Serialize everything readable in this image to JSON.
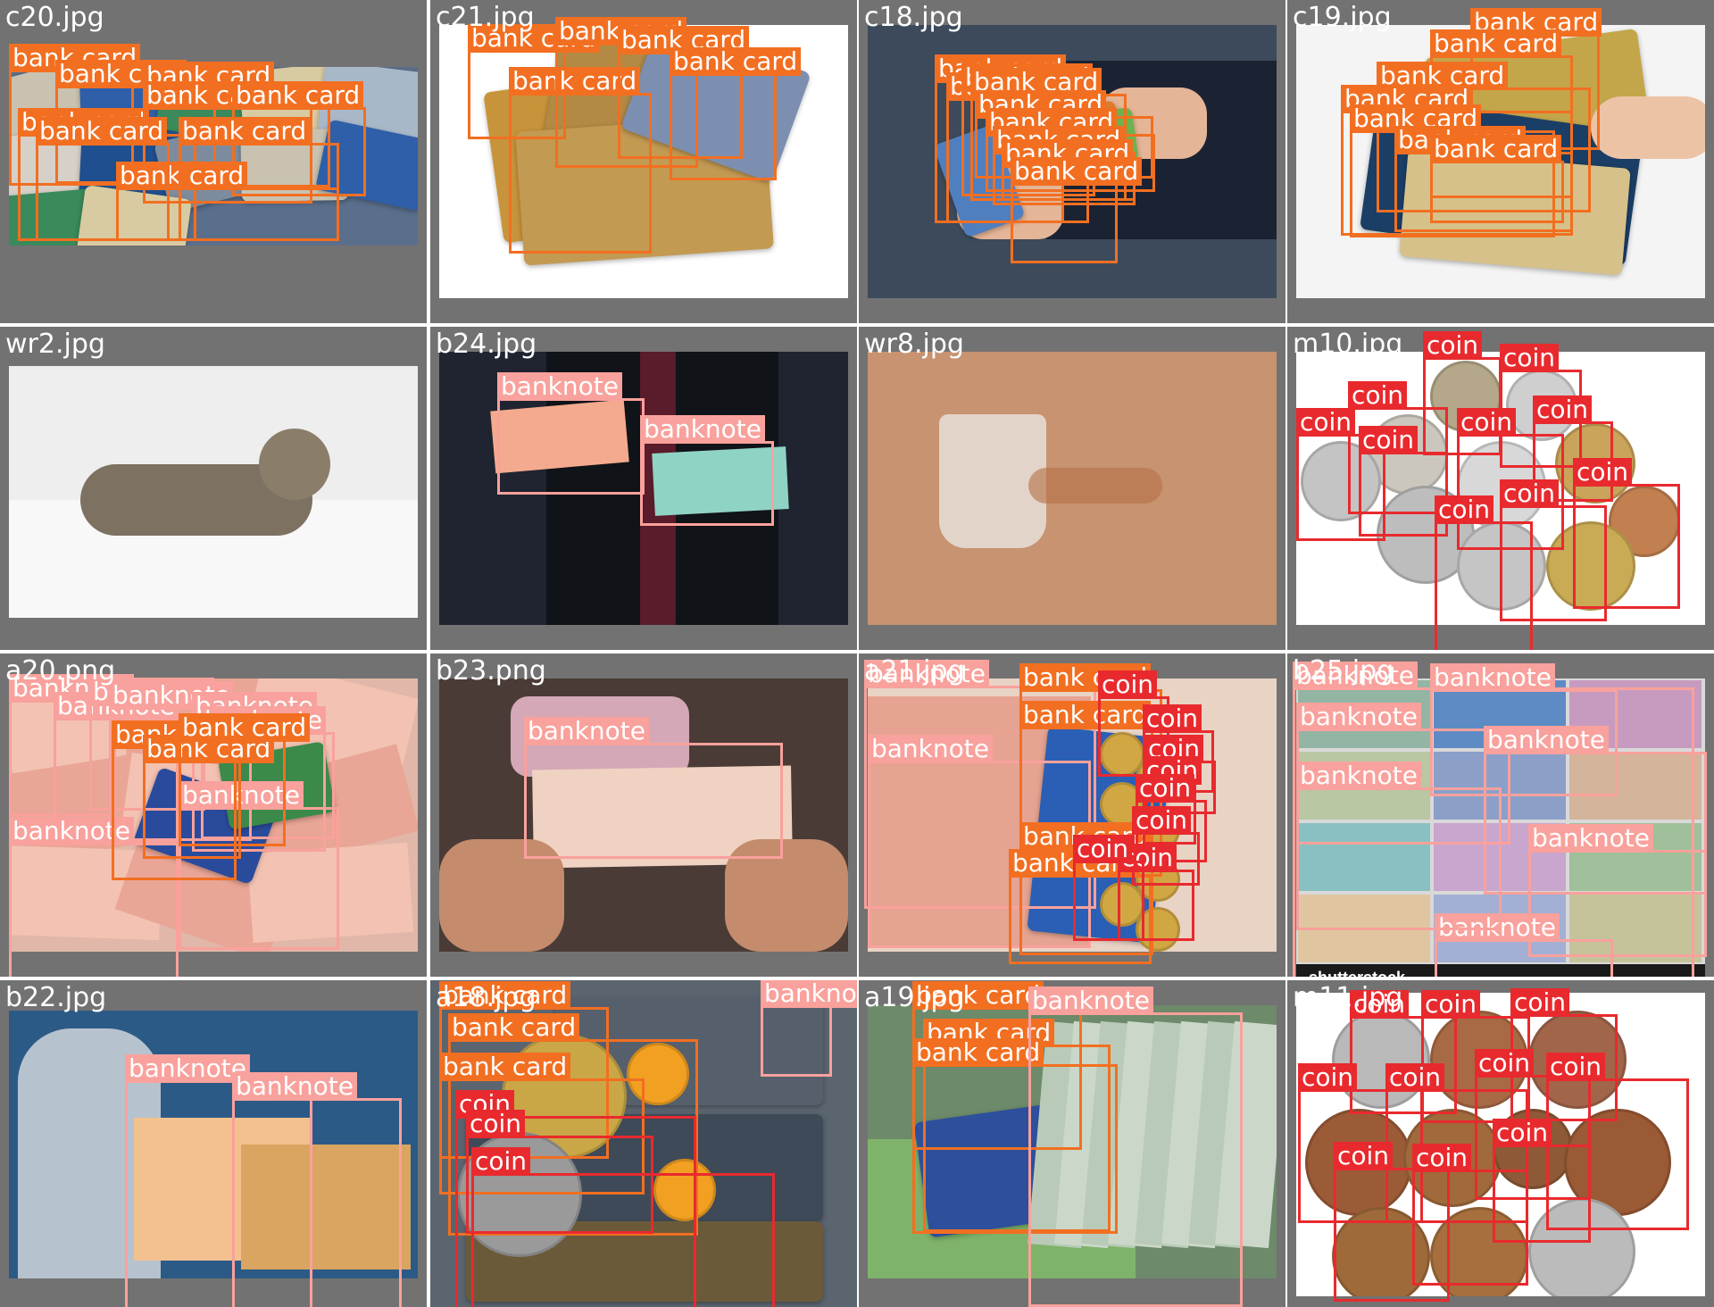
{
  "colors": {
    "grid_bg": "#727272",
    "bank_card": "#f26f21",
    "banknote": "#f9a19c",
    "coin": "#e82a2e"
  },
  "tiles": [
    {
      "name": "c20.jpg",
      "scene": "bank-cards",
      "bg": "#5a6f8c",
      "boxes": [
        {
          "label": "bank card",
          "cls": "bank_card"
        },
        {
          "label": "bank card",
          "cls": "bank_card"
        },
        {
          "label": "bank card",
          "cls": "bank_card"
        },
        {
          "label": "bank card",
          "cls": "bank_card"
        },
        {
          "label": "bank card",
          "cls": "bank_card"
        },
        {
          "label": "bank card",
          "cls": "bank_card"
        },
        {
          "label": "bank card",
          "cls": "bank_card"
        },
        {
          "label": "bank card",
          "cls": "bank_card"
        },
        {
          "label": "bank card",
          "cls": "bank_card"
        }
      ]
    },
    {
      "name": "c21.jpg",
      "scene": "credit-cards-fan",
      "bg": "#ffffff",
      "boxes": [
        {
          "label": "bank card",
          "cls": "bank_card"
        },
        {
          "label": "bank card",
          "cls": "bank_card"
        },
        {
          "label": "bank card",
          "cls": "bank_card"
        },
        {
          "label": "bank card",
          "cls": "bank_card"
        },
        {
          "label": "bank card",
          "cls": "bank_card"
        }
      ]
    },
    {
      "name": "c18.jpg",
      "scene": "hands-cards",
      "bg": "#3c4a5c",
      "boxes": [
        {
          "label": "bank card",
          "cls": "bank_card"
        },
        {
          "label": "bank card",
          "cls": "bank_card"
        },
        {
          "label": "bank card",
          "cls": "bank_card"
        },
        {
          "label": "bank card",
          "cls": "bank_card"
        },
        {
          "label": "bank card",
          "cls": "bank_card"
        },
        {
          "label": "bank card",
          "cls": "bank_card"
        },
        {
          "label": "bank card",
          "cls": "bank_card"
        },
        {
          "label": "bank card",
          "cls": "bank_card"
        },
        {
          "label": "bank card",
          "cls": "bank_card"
        }
      ]
    },
    {
      "name": "c19.jpg",
      "scene": "wallet-cards",
      "bg": "#f4f4f4",
      "boxes": [
        {
          "label": "bank card",
          "cls": "bank_card"
        },
        {
          "label": "bank card",
          "cls": "bank_card"
        },
        {
          "label": "bank card",
          "cls": "bank_card"
        },
        {
          "label": "bank card",
          "cls": "bank_card"
        },
        {
          "label": "bank card",
          "cls": "bank_card"
        },
        {
          "label": "bank card",
          "cls": "bank_card"
        },
        {
          "label": "bank card",
          "cls": "bank_card"
        }
      ]
    },
    {
      "name": "wr2.jpg",
      "scene": "cat",
      "bg": "#eeeeee",
      "boxes": []
    },
    {
      "name": "b24.jpg",
      "scene": "man-banknotes",
      "bg": "#1f2430",
      "boxes": [
        {
          "label": "banknote",
          "cls": "banknote"
        },
        {
          "label": "banknote",
          "cls": "banknote"
        }
      ]
    },
    {
      "name": "wr8.jpg",
      "scene": "glass-water",
      "bg": "#c79370",
      "boxes": []
    },
    {
      "name": "m10.jpg",
      "scene": "coins-white",
      "bg": "#ffffff",
      "boxes": [
        {
          "label": "coin",
          "cls": "coin"
        },
        {
          "label": "coin",
          "cls": "coin"
        },
        {
          "label": "coin",
          "cls": "coin"
        },
        {
          "label": "coin",
          "cls": "coin"
        },
        {
          "label": "coin",
          "cls": "coin"
        },
        {
          "label": "coin",
          "cls": "coin"
        },
        {
          "label": "coin",
          "cls": "coin"
        },
        {
          "label": "coin",
          "cls": "coin"
        },
        {
          "label": "coin",
          "cls": "coin"
        },
        {
          "label": "coin",
          "cls": "coin"
        }
      ]
    },
    {
      "name": "a20.png",
      "scene": "banknotes-cards",
      "bg": "#e0b7a8",
      "boxes": [
        {
          "label": "banknote",
          "cls": "banknote"
        },
        {
          "label": "banknote",
          "cls": "banknote"
        },
        {
          "label": "banknote",
          "cls": "banknote"
        },
        {
          "label": "banknote",
          "cls": "banknote"
        },
        {
          "label": "banknote",
          "cls": "banknote"
        },
        {
          "label": "banknote",
          "cls": "banknote"
        },
        {
          "label": "banknote",
          "cls": "banknote"
        },
        {
          "label": "banknote",
          "cls": "banknote"
        },
        {
          "label": "bank card",
          "cls": "bank_card"
        },
        {
          "label": "bank card",
          "cls": "bank_card"
        },
        {
          "label": "bank card",
          "cls": "bank_card"
        }
      ]
    },
    {
      "name": "b23.png",
      "scene": "phone-banknote",
      "bg": "#4a3b36",
      "boxes": [
        {
          "label": "banknote",
          "cls": "banknote"
        }
      ]
    },
    {
      "name": "a21.jpg",
      "scene": "banknote-card-coins",
      "bg": "#e9d3c5",
      "boxes": [
        {
          "label": "banknote",
          "cls": "banknote"
        },
        {
          "label": "banknote",
          "cls": "banknote"
        },
        {
          "label": "bank card",
          "cls": "bank_card"
        },
        {
          "label": "bank card",
          "cls": "bank_card"
        },
        {
          "label": "bank card",
          "cls": "bank_card"
        },
        {
          "label": "bank card",
          "cls": "bank_card"
        },
        {
          "label": "coin",
          "cls": "coin"
        },
        {
          "label": "coin",
          "cls": "coin"
        },
        {
          "label": "coin",
          "cls": "coin"
        },
        {
          "label": "coin",
          "cls": "coin"
        },
        {
          "label": "coin",
          "cls": "coin"
        },
        {
          "label": "coin",
          "cls": "coin"
        },
        {
          "label": "coin",
          "cls": "coin"
        },
        {
          "label": "coin",
          "cls": "coin"
        }
      ]
    },
    {
      "name": "b25.jpg",
      "scene": "banknote-collage",
      "bg": "#d9d9d9",
      "footer": "shutterstock",
      "boxes": [
        {
          "label": "banknote",
          "cls": "banknote"
        },
        {
          "label": "banknote",
          "cls": "banknote"
        },
        {
          "label": "banknote",
          "cls": "banknote"
        },
        {
          "label": "banknote",
          "cls": "banknote"
        },
        {
          "label": "banknote",
          "cls": "banknote"
        },
        {
          "label": "banknote",
          "cls": "banknote"
        },
        {
          "label": "banknote",
          "cls": "banknote"
        },
        {
          "label": "banknote",
          "cls": "banknote"
        },
        {
          "label": "banknote",
          "cls": "banknote"
        },
        {
          "label": "banknote",
          "cls": "banknote"
        },
        {
          "label": "banknote",
          "cls": "banknote"
        },
        {
          "label": "banknote",
          "cls": "banknote"
        }
      ]
    },
    {
      "name": "b22.jpg",
      "scene": "man-old-notes",
      "bg": "#2c5a86",
      "boxes": [
        {
          "label": "banknote",
          "cls": "banknote"
        },
        {
          "label": "banknote",
          "cls": "banknote"
        }
      ]
    },
    {
      "name": "a18.jpg",
      "scene": "mastercards-coins",
      "bg": "#5b6570",
      "boxes": [
        {
          "label": "bank card",
          "cls": "bank_card"
        },
        {
          "label": "bank card",
          "cls": "bank_card"
        },
        {
          "label": "bank card",
          "cls": "bank_card"
        },
        {
          "label": "coin",
          "cls": "coin"
        },
        {
          "label": "coin",
          "cls": "coin"
        },
        {
          "label": "coin",
          "cls": "coin"
        },
        {
          "label": "banknote",
          "cls": "banknote"
        }
      ]
    },
    {
      "name": "a19.jpg",
      "scene": "wallet-rubles",
      "bg": "#6d8a6a",
      "boxes": [
        {
          "label": "bank card",
          "cls": "bank_card"
        },
        {
          "label": "bank card",
          "cls": "bank_card"
        },
        {
          "label": "bank card",
          "cls": "bank_card"
        },
        {
          "label": "banknote",
          "cls": "banknote"
        }
      ]
    },
    {
      "name": "m11.jpg",
      "scene": "coins-grid",
      "bg": "#ffffff",
      "boxes": [
        {
          "label": "coin",
          "cls": "coin"
        },
        {
          "label": "coin",
          "cls": "coin"
        },
        {
          "label": "coin",
          "cls": "coin"
        },
        {
          "label": "coin",
          "cls": "coin"
        },
        {
          "label": "coin",
          "cls": "coin"
        },
        {
          "label": "coin",
          "cls": "coin"
        },
        {
          "label": "coin",
          "cls": "coin"
        },
        {
          "label": "coin",
          "cls": "coin"
        },
        {
          "label": "coin",
          "cls": "coin"
        },
        {
          "label": "coin",
          "cls": "coin"
        }
      ]
    }
  ]
}
